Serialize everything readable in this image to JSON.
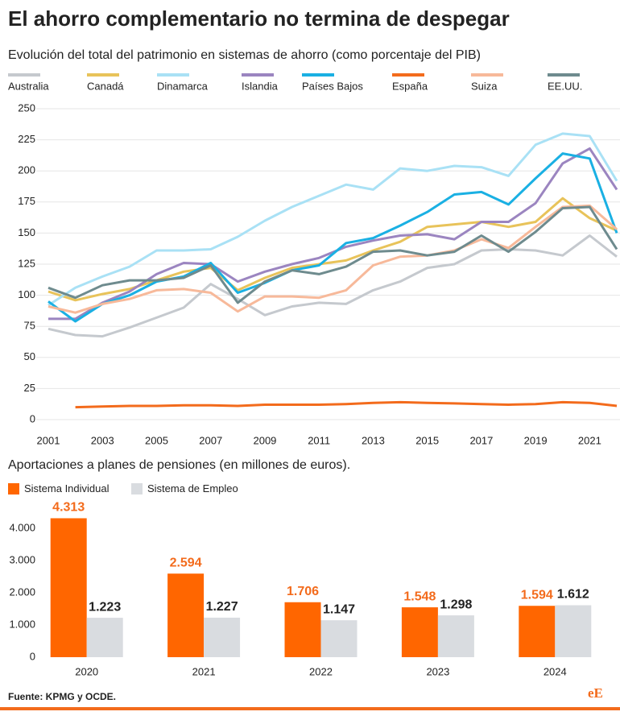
{
  "header": {
    "title": "El ahorro complementario no termina de despegar"
  },
  "footer": {
    "source": "Fuente: KPMG y OCDE.",
    "logo": "eE"
  },
  "chart_data": [
    {
      "type": "line",
      "title": "Evolución del total del patrimonio en sistemas de ahorro (como porcentaje del PIB)",
      "x": [
        2001,
        2002,
        2003,
        2004,
        2005,
        2006,
        2007,
        2008,
        2009,
        2010,
        2011,
        2012,
        2013,
        2014,
        2015,
        2016,
        2017,
        2018,
        2019,
        2020,
        2021,
        2022
      ],
      "xlim": [
        2001,
        2022
      ],
      "xticks": [
        2001,
        2003,
        2005,
        2007,
        2009,
        2011,
        2013,
        2015,
        2017,
        2019,
        2021
      ],
      "ylim": [
        0,
        250
      ],
      "yticks": [
        0,
        25,
        50,
        75,
        100,
        125,
        150,
        175,
        200,
        225,
        250
      ],
      "grid": true,
      "series": [
        {
          "name": "Australia",
          "color": "#c5c9ce",
          "values": [
            73,
            68,
            67,
            74,
            82,
            90,
            109,
            97,
            84,
            91,
            94,
            93,
            104,
            111,
            122,
            125,
            136,
            137,
            136,
            132,
            148,
            131
          ]
        },
        {
          "name": "Canadá",
          "color": "#e8c35a",
          "values": [
            103,
            96,
            101,
            105,
            112,
            119,
            122,
            104,
            114,
            122,
            125,
            128,
            136,
            143,
            155,
            157,
            159,
            155,
            159,
            178,
            162,
            152
          ]
        },
        {
          "name": "Dinamarca",
          "color": "#a9e1f5",
          "values": [
            92,
            106,
            115,
            123,
            136,
            136,
            137,
            147,
            160,
            171,
            180,
            189,
            185,
            202,
            200,
            204,
            203,
            196,
            221,
            230,
            228,
            192
          ]
        },
        {
          "name": "Islandia",
          "color": "#9b85c0",
          "values": [
            81,
            81,
            94,
            103,
            117,
            126,
            125,
            111,
            119,
            125,
            130,
            139,
            144,
            148,
            149,
            145,
            159,
            159,
            174,
            206,
            218,
            185
          ]
        },
        {
          "name": "Países Bajos",
          "color": "#1ab0e3",
          "values": [
            95,
            79,
            93,
            100,
            111,
            115,
            126,
            102,
            110,
            120,
            124,
            142,
            146,
            156,
            167,
            181,
            183,
            173,
            194,
            214,
            210,
            150
          ]
        },
        {
          "name": "España",
          "color": "#f36b1c",
          "values": [
            null,
            10,
            10.5,
            11,
            11,
            11.5,
            11.5,
            11,
            12,
            12,
            12,
            12.5,
            13.5,
            14,
            13.5,
            13,
            12.5,
            12,
            12.5,
            14,
            13.5,
            11
          ]
        },
        {
          "name": "Suiza",
          "color": "#f7b99a",
          "values": [
            91,
            86,
            93,
            97,
            104,
            105,
            102,
            87,
            99,
            99,
            98,
            104,
            124,
            131,
            132,
            136,
            145,
            138,
            155,
            171,
            172,
            153
          ]
        },
        {
          "name": "EE.UU.",
          "color": "#6e8b8e",
          "values": [
            106,
            98,
            108,
            112,
            112,
            114,
            124,
            94,
            111,
            120,
            117,
            123,
            135,
            136,
            132,
            135,
            148,
            135,
            151,
            170,
            171,
            137
          ]
        }
      ]
    },
    {
      "type": "bar",
      "title": "Aportaciones a planes de pensiones (en millones de euros).",
      "categories": [
        "2020",
        "2021",
        "2022",
        "2023",
        "2024"
      ],
      "ylim": [
        0,
        4500
      ],
      "yticks": [
        0,
        {
          "value": 1000,
          "label": "1.000"
        },
        {
          "value": 2000,
          "label": "2.000"
        },
        {
          "value": 3000,
          "label": "3.000"
        },
        {
          "value": 4000,
          "label": "4.000"
        }
      ],
      "series": [
        {
          "name": "Sistema Individual",
          "color": "#ff6600",
          "label_color": "#f36b1c",
          "values": [
            4313,
            2594,
            1706,
            1548,
            1594
          ],
          "value_labels": [
            "4.313",
            "2.594",
            "1.706",
            "1.548",
            "1.594"
          ]
        },
        {
          "name": "Sistema de Empleo",
          "color": "#d9dce0",
          "label_color": "#222222",
          "values": [
            1223,
            1227,
            1147,
            1298,
            1612
          ],
          "value_labels": [
            "1.223",
            "1.227",
            "1.147",
            "1.298",
            "1.612"
          ]
        }
      ]
    }
  ]
}
